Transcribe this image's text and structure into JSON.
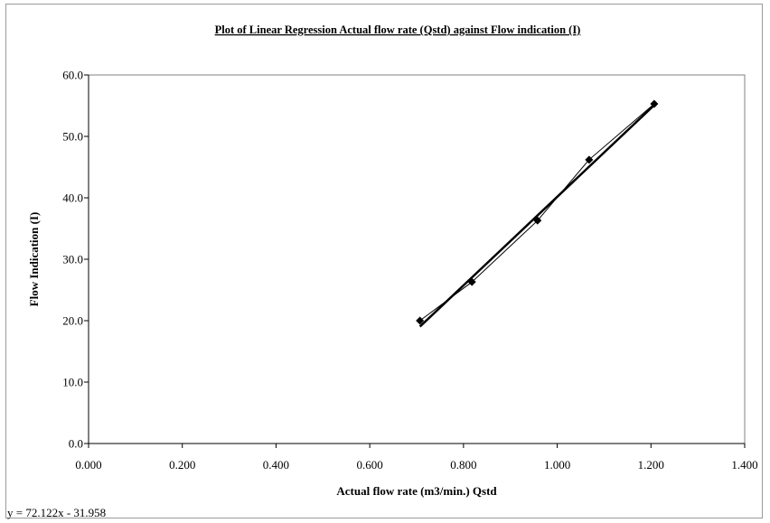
{
  "chart_data": {
    "type": "scatter",
    "title": "Plot of Linear Regression Actual flow rate (Qstd) against Flow indication (I)",
    "xlabel": "Actual flow rate (m3/min.) Qstd",
    "ylabel": "Flow Indication (I)",
    "xlim": [
      0.0,
      1.4
    ],
    "ylim": [
      0.0,
      60.0
    ],
    "x_ticks": [
      "0.000",
      "0.200",
      "0.400",
      "0.600",
      "0.800",
      "1.000",
      "1.200",
      "1.400"
    ],
    "y_ticks": [
      "0.0",
      "10.0",
      "20.0",
      "30.0",
      "40.0",
      "50.0",
      "60.0"
    ],
    "grid": false,
    "legend": "none",
    "series": [
      {
        "style": "line-with-markers",
        "marker": "diamond",
        "x": [
          0.707,
          0.818,
          0.958,
          1.068,
          1.207
        ],
        "y": [
          20.0,
          26.3,
          36.3,
          46.2,
          55.3
        ]
      }
    ],
    "trendline": {
      "type": "linear",
      "slope": 72.122,
      "intercept": -31.958,
      "x_range": [
        0.707,
        1.207
      ],
      "equation_label": "y = 72.122x - 31.958"
    }
  }
}
